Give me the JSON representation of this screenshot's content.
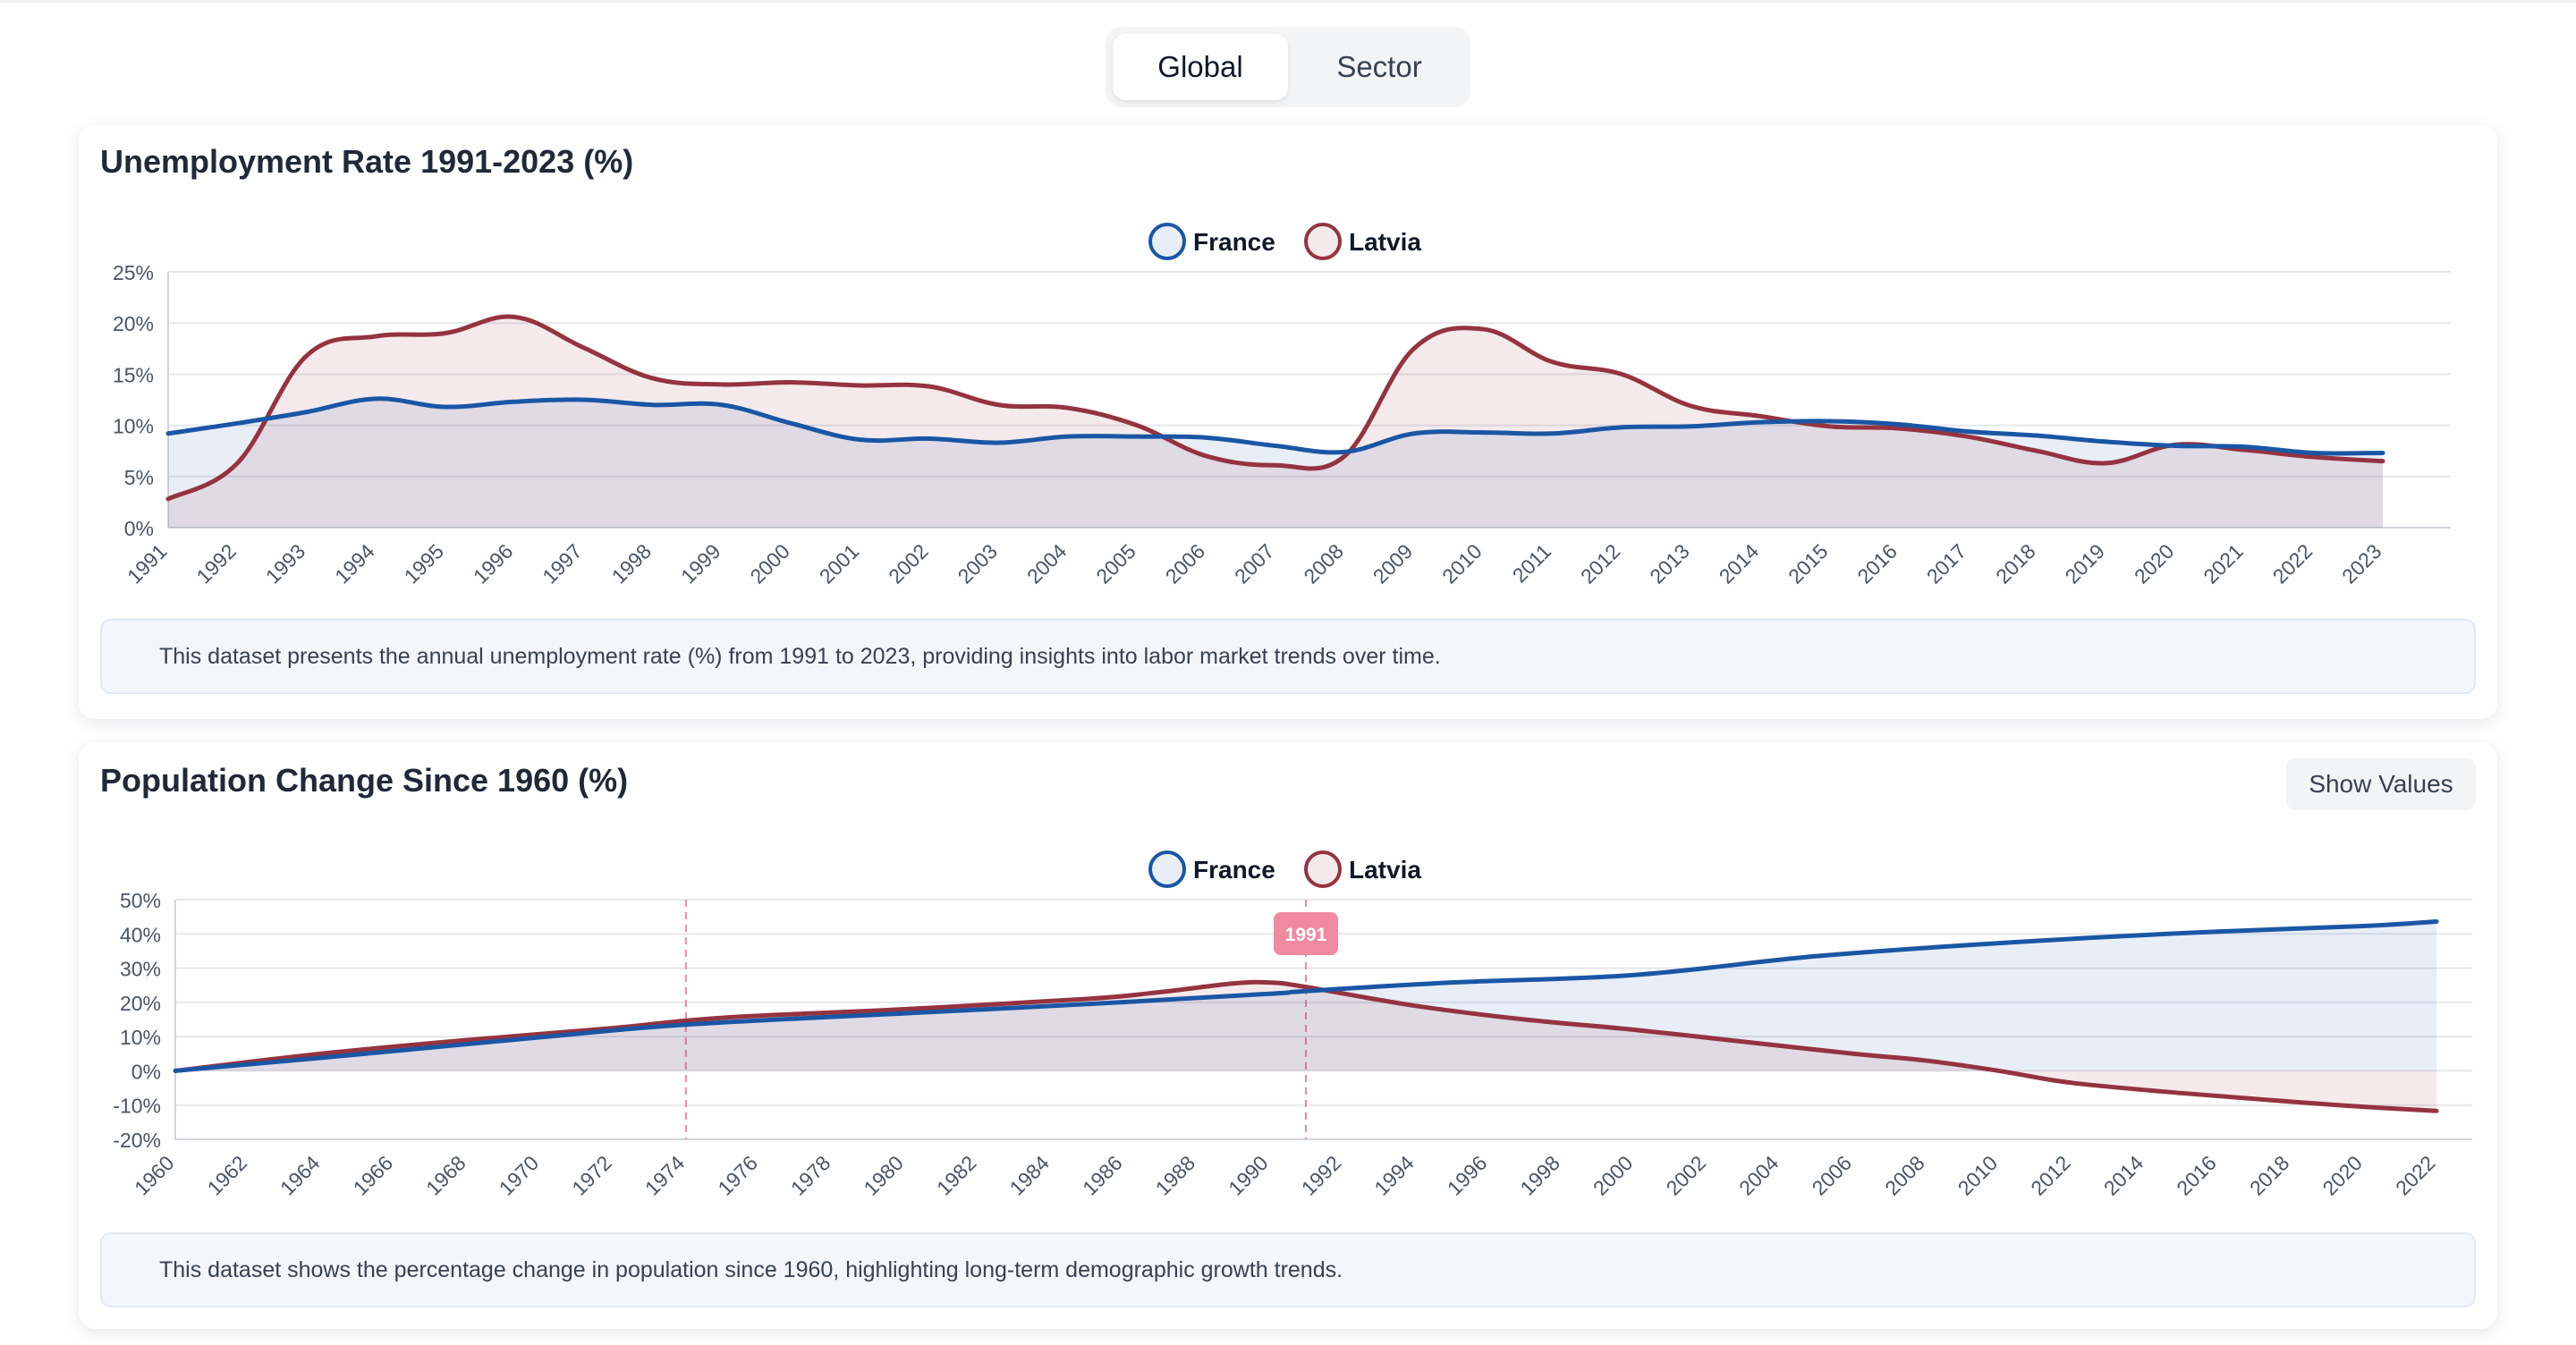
{
  "tabs": [
    {
      "label": "Global",
      "active": true
    },
    {
      "label": "Sector",
      "active": false
    }
  ],
  "colors": {
    "france": "#1a56a4",
    "latvia": "#953340",
    "france_fill": "rgba(26,86,164,0.10)",
    "latvia_fill": "rgba(149,51,64,0.10)",
    "highlight": "#f08aa0",
    "grid": "#e5e7eb"
  },
  "unemployment": {
    "title": "Unemployment Rate 1991-2023 (%)",
    "description": "This dataset presents the annual unemployment rate (%) from 1991 to 2023, providing insights into labor market trends over time."
  },
  "population": {
    "title": "Population Change Since 1960 (%)",
    "show_values_label": "Show Values",
    "description": "This dataset shows the percentage change in population since 1960, highlighting long-term demographic growth trends.",
    "tooltip_label": "1991"
  },
  "chart_data": [
    {
      "type": "area",
      "title": "Unemployment Rate 1991-2023 (%)",
      "xlabel": "",
      "ylabel": "",
      "ylim": [
        0,
        25
      ],
      "yticks": [
        0,
        5,
        10,
        15,
        20,
        25
      ],
      "ytick_suffix": "%",
      "grid": true,
      "legend": "top-center",
      "x": [
        1991,
        1992,
        1993,
        1994,
        1995,
        1996,
        1997,
        1998,
        1999,
        2000,
        2001,
        2002,
        2003,
        2004,
        2005,
        2006,
        2007,
        2008,
        2009,
        2010,
        2011,
        2012,
        2013,
        2014,
        2015,
        2016,
        2017,
        2018,
        2019,
        2020,
        2021,
        2022,
        2023
      ],
      "series": [
        {
          "name": "France",
          "values": [
            9.2,
            10.2,
            11.3,
            12.6,
            11.8,
            12.3,
            12.5,
            12.0,
            12.0,
            10.2,
            8.6,
            8.7,
            8.3,
            8.9,
            8.9,
            8.8,
            8.0,
            7.4,
            9.2,
            9.3,
            9.2,
            9.8,
            9.9,
            10.3,
            10.4,
            10.1,
            9.4,
            9.0,
            8.4,
            8.0,
            7.9,
            7.3,
            7.3
          ]
        },
        {
          "name": "Latvia",
          "values": [
            2.8,
            6.3,
            16.8,
            18.7,
            19.0,
            20.6,
            17.6,
            14.6,
            14.0,
            14.2,
            13.9,
            13.8,
            12.0,
            11.7,
            10.0,
            7.0,
            6.1,
            7.0,
            17.5,
            19.4,
            16.2,
            15.0,
            11.9,
            10.9,
            9.9,
            9.7,
            8.9,
            7.5,
            6.3,
            8.1,
            7.6,
            6.9,
            6.5
          ]
        }
      ]
    },
    {
      "type": "area",
      "title": "Population Change Since 1960 (%)",
      "xlabel": "",
      "ylabel": "",
      "ylim": [
        -20,
        50
      ],
      "yticks": [
        -20,
        -10,
        0,
        10,
        20,
        30,
        40,
        50
      ],
      "ytick_suffix": "%",
      "grid": true,
      "legend": "top-center",
      "x_start": 1960,
      "x_end": 2022,
      "x_tick_step": 2,
      "reference_lines": [
        1974,
        1991
      ],
      "highlight_x": 1991,
      "series": [
        {
          "name": "France",
          "points": [
            [
              1960,
              0
            ],
            [
              1964,
              3.8
            ],
            [
              1970,
              9.8
            ],
            [
              1974,
              13.5
            ],
            [
              1980,
              16.8
            ],
            [
              1985,
              19.5
            ],
            [
              1990,
              22.5
            ],
            [
              1991,
              23.3
            ],
            [
              1995,
              25.8
            ],
            [
              2000,
              28.0
            ],
            [
              2005,
              33.5
            ],
            [
              2010,
              37.3
            ],
            [
              2015,
              40.2
            ],
            [
              2020,
              42.3
            ],
            [
              2022,
              43.6
            ]
          ]
        },
        {
          "name": "Latvia",
          "points": [
            [
              1960,
              0
            ],
            [
              1964,
              5.0
            ],
            [
              1968,
              9.0
            ],
            [
              1972,
              12.5
            ],
            [
              1975,
              15.5
            ],
            [
              1980,
              18.0
            ],
            [
              1985,
              21.0
            ],
            [
              1987,
              23.0
            ],
            [
              1989,
              25.5
            ],
            [
              1990,
              25.8
            ],
            [
              1991,
              24.5
            ],
            [
              1994,
              19.0
            ],
            [
              1997,
              15.0
            ],
            [
              2000,
              12.0
            ],
            [
              2003,
              8.5
            ],
            [
              2006,
              5.0
            ],
            [
              2008,
              3.0
            ],
            [
              2010,
              0
            ],
            [
              2012,
              -3.5
            ],
            [
              2015,
              -6.5
            ],
            [
              2018,
              -9.0
            ],
            [
              2020,
              -10.5
            ],
            [
              2022,
              -11.7
            ]
          ]
        }
      ]
    }
  ]
}
